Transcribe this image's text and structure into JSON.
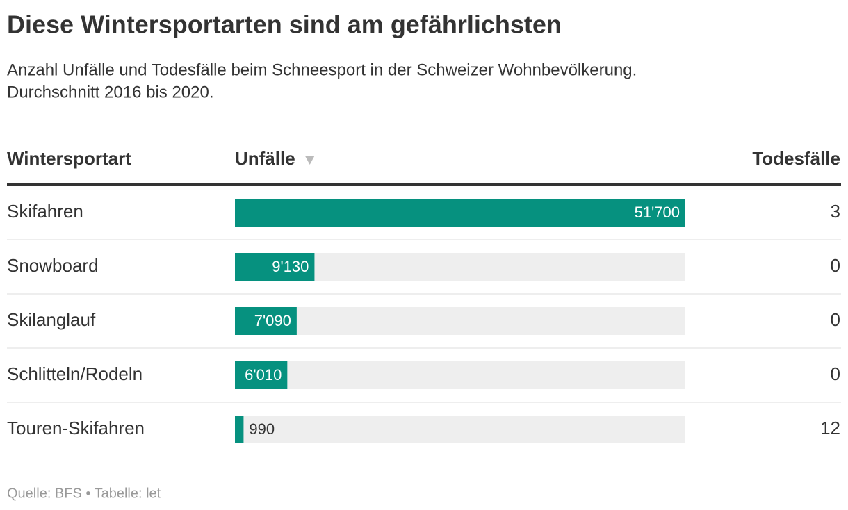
{
  "header": {
    "title": "Diese Wintersportarten sind am gefährlichsten",
    "subtitle": [
      "Anzahl Unfälle und Todesfälle beim Schneesport in der Schweizer Wohnbevölkerung.",
      "Durchschnitt 2016 bis 2020."
    ]
  },
  "table": {
    "columns": [
      "Wintersportart",
      "Unfälle",
      "Todesfälle"
    ],
    "bar_color": "#06917f",
    "bar_track_color": "#eeeeee",
    "rows": [
      {
        "sport": "Skifahren",
        "accidents": 51700,
        "accidents_label": "51'700",
        "deaths": 3
      },
      {
        "sport": "Snowboard",
        "accidents": 9130,
        "accidents_label": "9'130",
        "deaths": 0
      },
      {
        "sport": "Skilanglauf",
        "accidents": 7090,
        "accidents_label": "7'090",
        "deaths": 0
      },
      {
        "sport": "Schlitteln/Rodeln",
        "accidents": 6010,
        "accidents_label": "6'010",
        "deaths": 0
      },
      {
        "sport": "Touren-Skifahren",
        "accidents": 990,
        "accidents_label": "990",
        "deaths": 12
      }
    ]
  },
  "footer": "Quelle: BFS • Tabelle: let"
}
